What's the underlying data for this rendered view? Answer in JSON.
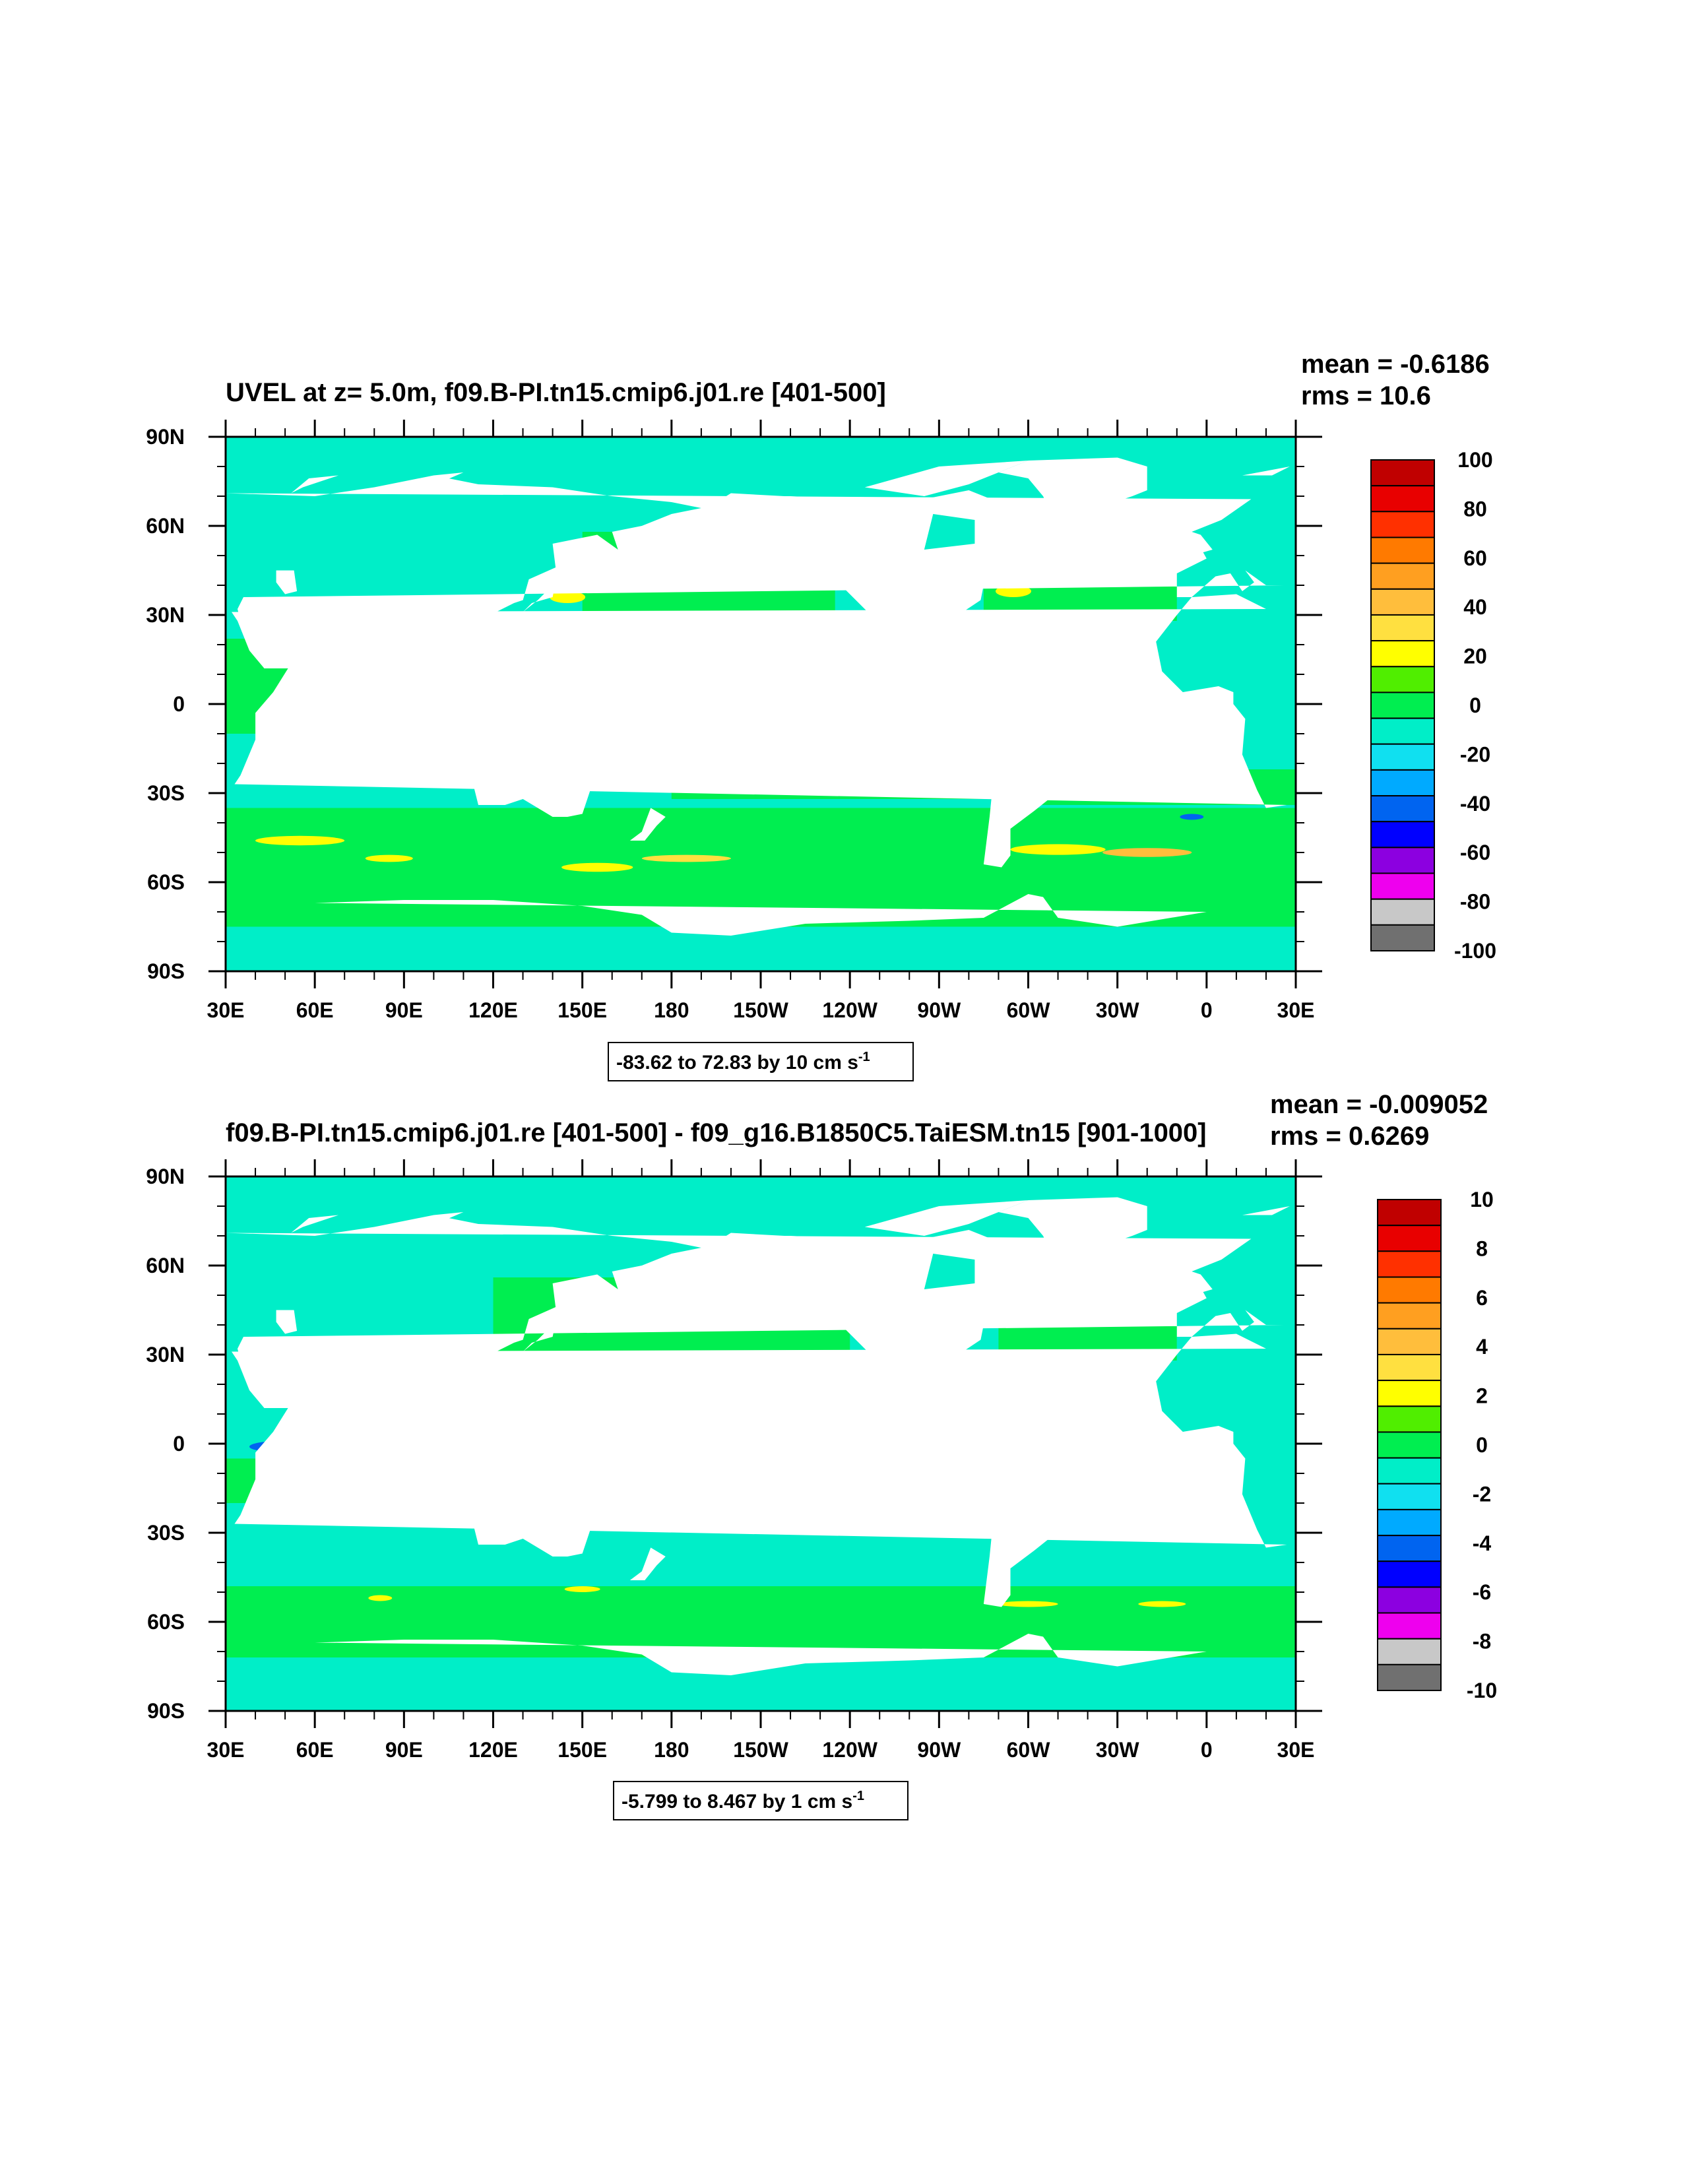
{
  "chart_data": [
    {
      "type": "heatmap",
      "title": "UVEL at z=   5.0m, f09.B-PI.tn15.cmip6.j01.re [401-500]",
      "stats": [
        "mean = -0.6186",
        "rms = 10.6"
      ],
      "range_box": {
        "text": "-83.62 to 72.83 by 10 cm s",
        "sup": "-1"
      },
      "x_ticks": [
        "30E",
        "60E",
        "90E",
        "120E",
        "150E",
        "180",
        "150W",
        "120W",
        "90W",
        "60W",
        "30W",
        "0",
        "30E"
      ],
      "y_ticks": [
        "90N",
        "60N",
        "30N",
        "0",
        "30S",
        "60S",
        "90S"
      ],
      "colorbar_labels": [
        "100",
        "80",
        "60",
        "40",
        "20",
        "0",
        "-20",
        "-40",
        "-60",
        "-80",
        "-100"
      ],
      "zlim": [
        -100,
        100
      ],
      "contour_interval": 10,
      "min": -83.62,
      "max": 72.83,
      "units": "cm s-1",
      "variant": "full"
    },
    {
      "type": "heatmap",
      "title": "f09.B-PI.tn15.cmip6.j01.re [401-500] - f09_g16.B1850C5.TaiESM.tn15 [901-1000]",
      "stats": [
        "mean = -0.009052",
        "rms = 0.6269"
      ],
      "range_box": {
        "text": "-5.799 to 8.467 by 1 cm s",
        "sup": "-1"
      },
      "x_ticks": [
        "30E",
        "60E",
        "90E",
        "120E",
        "150E",
        "180",
        "150W",
        "120W",
        "90W",
        "60W",
        "30W",
        "0",
        "30E"
      ],
      "y_ticks": [
        "90N",
        "60N",
        "30N",
        "0",
        "30S",
        "60S",
        "90S"
      ],
      "colorbar_labels": [
        "10",
        "8",
        "6",
        "4",
        "2",
        "0",
        "-2",
        "-4",
        "-6",
        "-8",
        "-10"
      ],
      "zlim": [
        -10,
        10
      ],
      "contour_interval": 1,
      "min": -5.799,
      "max": 8.467,
      "units": "cm s-1",
      "variant": "diff"
    }
  ],
  "colors": {
    "colorbar": [
      "#c00000",
      "#e80000",
      "#ff3000",
      "#ff7a00",
      "#ff9f20",
      "#ffbe3c",
      "#ffe040",
      "#ffff00",
      "#50ee00",
      "#00ee50",
      "#00eec8",
      "#10e0f0",
      "#00aaff",
      "#0064f0",
      "#0000ff",
      "#8c00e0",
      "#ee00ee",
      "#c8c8c8",
      "#707070"
    ],
    "ocean_zero_pos": "#00ee50",
    "ocean_zero_neg": "#00eec8",
    "land": "#ffffff",
    "strong_neg": "#0000ff",
    "strong_pos": "#ffff00"
  }
}
